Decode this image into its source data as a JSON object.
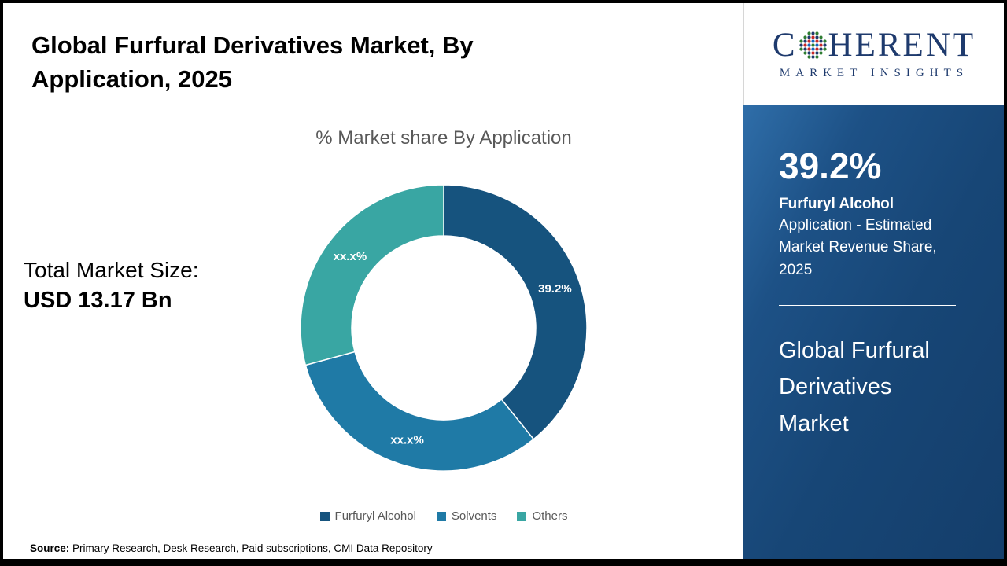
{
  "page": {
    "title": "Global Furfural Derivatives Market, By Application, 2025",
    "subtitle": "% Market share By Application",
    "total_market_label": "Total Market Size:",
    "total_market_value": "USD 13.17 Bn",
    "source_label": "Source:",
    "source_text": " Primary Research, Desk Research, Paid subscriptions, CMI Data Repository"
  },
  "logo": {
    "name": "Coherent Market Insights",
    "line1_pre": "C",
    "line1_post": "HERENT",
    "line2": "MARKET INSIGHTS",
    "text_color": "#1e3a6d",
    "dot_colors": [
      "#2e7d32",
      "#1565c0",
      "#c62828",
      "#1e3a6d"
    ]
  },
  "sidebar": {
    "stat_value": "39.2%",
    "stat_bold": "Furfuryl Alcohol",
    "stat_desc": "Application - Estimated Market Revenue Share, 2025",
    "panel_title": "Global Furfural Derivatives Market",
    "bg_color": "#174676"
  },
  "chart_data": {
    "type": "pie",
    "donut": true,
    "title": "% Market share By Application",
    "categories": [
      "Furfuryl Alcohol",
      "Solvents",
      "Others"
    ],
    "values": [
      39.2,
      31.6,
      29.2
    ],
    "labels": [
      "39.2%",
      "xx.x%",
      "xx.x%"
    ],
    "colors": [
      "#16537e",
      "#1f7aa6",
      "#39a6a3"
    ],
    "start_angle_deg": 0,
    "legend_position": "bottom",
    "note_values": "Solvents and Others shares are displayed as xx.x% on the chart; their numeric values are estimated from segment angles"
  }
}
